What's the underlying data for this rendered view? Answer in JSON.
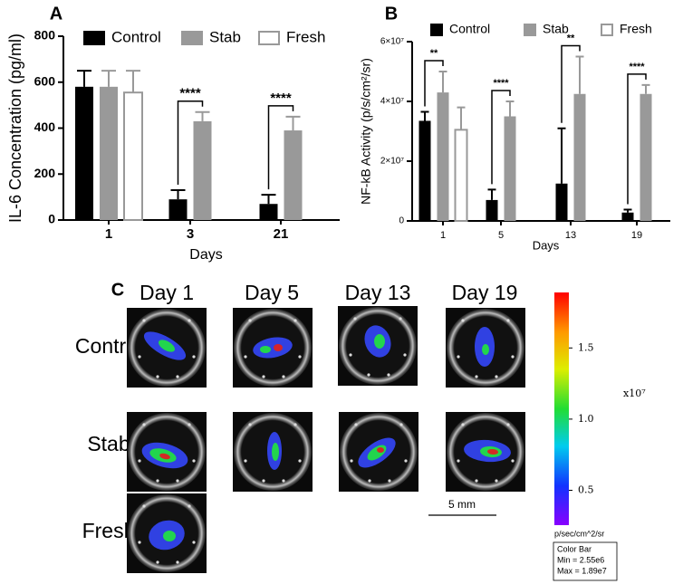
{
  "chart_data": [
    {
      "type": "bar",
      "panel_label": "A",
      "y_label": "IL-6 Concentration (pg/ml)",
      "x_label": "Days",
      "categories": [
        "1",
        "3",
        "21"
      ],
      "series": [
        {
          "name": "Control",
          "color": "#000000",
          "values": [
            580,
            90,
            70
          ],
          "errors": [
            70,
            40,
            40
          ]
        },
        {
          "name": "Stab",
          "color": "#999999",
          "values": [
            580,
            430,
            390
          ],
          "errors": [
            70,
            40,
            60
          ]
        },
        {
          "name": "Fresh",
          "color": "#ffffff",
          "edgecolor": "#999999",
          "values": [
            555,
            null,
            null
          ],
          "errors": [
            95,
            null,
            null
          ]
        }
      ],
      "significance": [
        null,
        "****",
        "****"
      ],
      "ylim": [
        0,
        800
      ],
      "yticks": [
        0,
        200,
        400,
        600,
        800
      ]
    },
    {
      "type": "bar",
      "panel_label": "B",
      "y_label": "NF-kB Activity (p/s/cm²/sr)",
      "x_label": "Days",
      "categories": [
        "1",
        "5",
        "13",
        "19"
      ],
      "series": [
        {
          "name": "Control",
          "color": "#000000",
          "values": [
            33500000,
            7000000,
            12500000,
            2800000
          ],
          "errors": [
            3000000,
            3500000,
            18500000,
            1000000
          ]
        },
        {
          "name": "Stab",
          "color": "#999999",
          "values": [
            43000000,
            35000000,
            42500000,
            42500000
          ],
          "errors": [
            7000000,
            5000000,
            12500000,
            3000000
          ]
        },
        {
          "name": "Fresh",
          "color": "#ffffff",
          "edgecolor": "#999999",
          "values": [
            30500000,
            null,
            null,
            null
          ],
          "errors": [
            7500000,
            null,
            null,
            null
          ]
        }
      ],
      "significance": [
        "**",
        "****",
        "**",
        "****"
      ],
      "ylim": [
        0,
        60000000
      ],
      "yticks": [
        0,
        {
          "value": 20000000,
          "label": "2×10⁷"
        },
        {
          "value": 40000000,
          "label": "4×10⁷"
        },
        {
          "value": 60000000,
          "label": "6×10⁷"
        }
      ]
    }
  ],
  "panel_c": {
    "panel_label": "C",
    "columns": [
      "Day 1",
      "Day 5",
      "Day 13",
      "Day 19"
    ],
    "rows": [
      "Control",
      "Stab",
      "Fresh"
    ],
    "scale_bar": "5 mm",
    "colorbar": {
      "range": [
        0.255,
        1.89
      ],
      "ticks": [
        {
          "value": 0.5,
          "label": "0.5"
        },
        {
          "value": 1,
          "label": "1.0"
        },
        1.5
      ],
      "multiplier": "x10⁷",
      "unit": "p/sec/cm^2/sr",
      "box": [
        "Color Bar",
        "Min = 2.55e6",
        "Max = 1.89e7"
      ]
    }
  }
}
